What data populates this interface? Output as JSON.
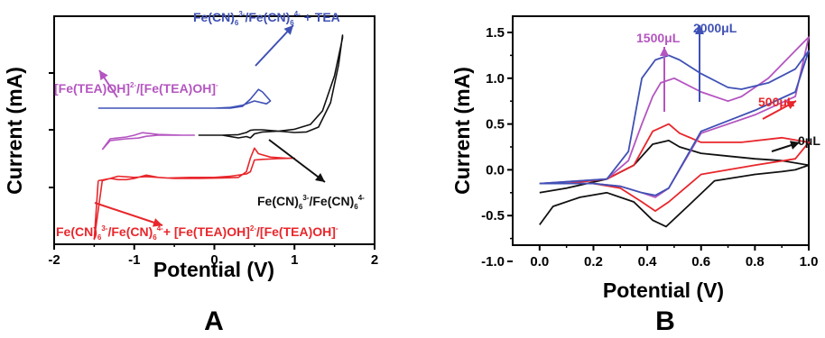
{
  "colors": {
    "black": "#111111",
    "red": "#e8262b",
    "blue": "#3f51b5",
    "magenta": "#b455c0"
  },
  "chart_data": [
    {
      "panel": "A",
      "type": "line",
      "xlabel": "Potential (V)",
      "ylabel": "Current (mA)",
      "xlim": [
        -2,
        2
      ],
      "xticks": [
        "-2",
        "-1",
        "0",
        "1",
        "2"
      ],
      "yticks_labeled": false,
      "annotations": [
        {
          "name": "ann-blue",
          "color": "blue",
          "parts": [
            [
              "Fe(CN)",
              ""
            ],
            [
              "6",
              "sub"
            ],
            [
              "3-",
              "sup"
            ],
            [
              "/Fe(CN)",
              ""
            ],
            [
              "6",
              "sub"
            ],
            [
              "4-",
              "sup"
            ],
            [
              " + TEA",
              ""
            ]
          ]
        },
        {
          "name": "ann-magenta",
          "color": "magenta",
          "parts": [
            [
              "[Fe(TEA)OH]",
              ""
            ],
            [
              "2-",
              "sup"
            ],
            [
              "/[Fe(TEA)OH]",
              ""
            ],
            [
              "-",
              "sup"
            ]
          ]
        },
        {
          "name": "ann-black",
          "color": "black",
          "parts": [
            [
              "Fe(CN)",
              ""
            ],
            [
              "6",
              "sub"
            ],
            [
              "3-",
              "sup"
            ],
            [
              "/Fe(CN)",
              ""
            ],
            [
              "6",
              "sub"
            ],
            [
              "4-",
              "sup"
            ]
          ]
        },
        {
          "name": "ann-red",
          "color": "red",
          "parts": [
            [
              "Fe(CN)",
              ""
            ],
            [
              "6",
              "sub"
            ],
            [
              "3-",
              "sup"
            ],
            [
              "/Fe(CN)",
              ""
            ],
            [
              "6",
              "sub"
            ],
            [
              "4-",
              "sup"
            ],
            [
              "+ [Fe(TEA)OH]",
              ""
            ],
            [
              "2-",
              "sup"
            ],
            [
              "/[Fe(TEA)OH]",
              ""
            ],
            [
              "-",
              "sup"
            ]
          ]
        }
      ],
      "series": [
        {
          "color": "blue",
          "x": [
            -1.45,
            -0.2,
            0.2,
            0.35,
            0.45,
            0.55,
            0.6,
            0.7,
            0.65,
            0.5,
            0.35,
            0.2,
            0.0,
            -0.2,
            -1.45
          ],
          "y": [
            0.0,
            0.0,
            0.0,
            0.05,
            0.25,
            0.52,
            0.45,
            0.2,
            0.12,
            0.2,
            0.08,
            0.02,
            0.0,
            0.0,
            0.0
          ]
        },
        {
          "color": "magenta",
          "x": [
            -1.4,
            -1.3,
            -1.1,
            -1.0,
            -0.9,
            -0.7,
            -0.4,
            -0.25,
            -0.4,
            -0.7,
            -0.85,
            -0.95,
            -1.1,
            -1.3,
            -1.4
          ],
          "y": [
            -0.35,
            -0.05,
            0.0,
            0.05,
            0.12,
            0.07,
            0.05,
            0.05,
            0.05,
            0.05,
            0.02,
            -0.03,
            -0.05,
            -0.1,
            -0.35
          ]
        },
        {
          "color": "black",
          "x": [
            -0.2,
            0.1,
            0.3,
            0.4,
            0.45,
            0.5,
            0.6,
            0.8,
            1.0,
            1.15,
            1.3,
            1.45,
            1.55,
            1.6,
            1.6,
            1.5,
            1.35,
            1.2,
            1.0,
            0.8,
            0.6,
            0.5,
            0.45,
            0.4,
            0.3,
            0.1,
            -0.2
          ],
          "y": [
            0.0,
            0.0,
            0.02,
            0.1,
            0.18,
            0.2,
            0.2,
            0.15,
            0.1,
            0.12,
            0.3,
            1.2,
            2.6,
            3.7,
            3.6,
            2.2,
            0.9,
            0.4,
            0.22,
            0.15,
            0.12,
            0.05,
            -0.1,
            -0.05,
            -0.1,
            0.0,
            0.0
          ]
        },
        {
          "color": "red",
          "x": [
            -1.45,
            -1.3,
            -1.2,
            -1.1,
            -1.0,
            -0.9,
            -0.85,
            -0.7,
            -0.5,
            -0.2,
            0.1,
            0.3,
            0.4,
            0.45,
            0.5,
            0.55,
            0.7,
            0.9,
            1.0,
            0.8,
            0.6,
            0.5,
            0.45,
            0.4,
            0.2,
            0.0,
            -0.3,
            -0.6,
            -0.85,
            -1.0,
            -1.2,
            -1.4,
            -1.5,
            -1.45
          ],
          "y": [
            -0.9,
            -0.8,
            -0.85,
            -0.85,
            -0.8,
            -0.7,
            -0.65,
            -0.75,
            -0.8,
            -0.8,
            -0.78,
            -0.75,
            -0.5,
            0.1,
            0.55,
            0.3,
            0.15,
            0.1,
            0.1,
            0.08,
            0.05,
            0.02,
            -0.5,
            -0.6,
            -0.7,
            -0.75,
            -0.75,
            -0.78,
            -0.72,
            -0.75,
            -0.7,
            -0.9,
            -3.5,
            -0.9
          ]
        }
      ]
    },
    {
      "panel": "B",
      "type": "line",
      "xlabel": "Potential (V)",
      "ylabel": "Current (mA)",
      "xlim": [
        -0.1,
        1.0
      ],
      "ylim": [
        -1.0,
        1.5
      ],
      "xticks": [
        "0.0",
        "0.2",
        "0.4",
        "0.6",
        "0.8",
        "1.0"
      ],
      "yticks": [
        "-1.0",
        "-0.5",
        "0.0",
        "0.5",
        "1.0",
        "1.5"
      ],
      "annotations": [
        {
          "name": "ann-1500",
          "color": "magenta",
          "text": "1500μL"
        },
        {
          "name": "ann-2000",
          "color": "blue",
          "text": "2000μL"
        },
        {
          "name": "ann-500",
          "color": "red",
          "text": "500μL"
        },
        {
          "name": "ann-0",
          "color": "black",
          "text": "0μL"
        }
      ],
      "series": [
        {
          "name": "0μL",
          "color": "black",
          "x": [
            0.0,
            0.05,
            0.15,
            0.25,
            0.35,
            0.42,
            0.47,
            0.55,
            0.65,
            0.8,
            0.9,
            0.95,
            1.0,
            0.9,
            0.8,
            0.7,
            0.6,
            0.52,
            0.48,
            0.42,
            0.35,
            0.25,
            0.1,
            0.0
          ],
          "y": [
            -0.6,
            -0.4,
            -0.3,
            -0.25,
            -0.35,
            -0.55,
            -0.62,
            -0.4,
            -0.12,
            -0.05,
            -0.02,
            0.0,
            0.05,
            0.1,
            0.12,
            0.15,
            0.18,
            0.25,
            0.32,
            0.28,
            0.05,
            -0.1,
            -0.2,
            -0.25
          ]
        },
        {
          "name": "500μL",
          "color": "red",
          "x": [
            0.0,
            0.2,
            0.3,
            0.38,
            0.43,
            0.48,
            0.6,
            0.8,
            0.95,
            1.0,
            0.9,
            0.75,
            0.6,
            0.52,
            0.48,
            0.42,
            0.35,
            0.25,
            0.1,
            0.0
          ],
          "y": [
            -0.15,
            -0.15,
            -0.2,
            -0.35,
            -0.45,
            -0.35,
            -0.05,
            0.05,
            0.12,
            0.3,
            0.35,
            0.3,
            0.3,
            0.4,
            0.5,
            0.42,
            0.05,
            -0.1,
            -0.15,
            -0.15
          ]
        },
        {
          "name": "1500μL",
          "color": "magenta",
          "x": [
            0.0,
            0.2,
            0.3,
            0.38,
            0.43,
            0.48,
            0.6,
            0.8,
            0.95,
            1.0,
            0.95,
            0.85,
            0.75,
            0.7,
            0.6,
            0.5,
            0.45,
            0.42,
            0.38,
            0.33,
            0.25,
            0.1,
            0.0
          ],
          "y": [
            -0.15,
            -0.15,
            -0.18,
            -0.25,
            -0.3,
            -0.2,
            0.4,
            0.6,
            0.8,
            1.45,
            1.3,
            1.0,
            0.8,
            0.75,
            0.85,
            1.0,
            0.95,
            0.8,
            0.5,
            0.1,
            -0.1,
            -0.13,
            -0.15
          ]
        },
        {
          "name": "2000μL",
          "color": "blue",
          "x": [
            0.0,
            0.2,
            0.3,
            0.38,
            0.43,
            0.48,
            0.6,
            0.8,
            0.95,
            1.0,
            0.95,
            0.85,
            0.75,
            0.7,
            0.6,
            0.52,
            0.48,
            0.43,
            0.38,
            0.33,
            0.25,
            0.1,
            0.0
          ],
          "y": [
            -0.15,
            -0.15,
            -0.18,
            -0.25,
            -0.28,
            -0.2,
            0.42,
            0.65,
            0.85,
            1.3,
            1.1,
            0.95,
            0.88,
            0.9,
            1.05,
            1.2,
            1.25,
            1.2,
            1.0,
            0.2,
            -0.1,
            -0.13,
            -0.15
          ]
        }
      ]
    }
  ],
  "labels": {
    "panel_a": "A",
    "panel_b": "B"
  }
}
